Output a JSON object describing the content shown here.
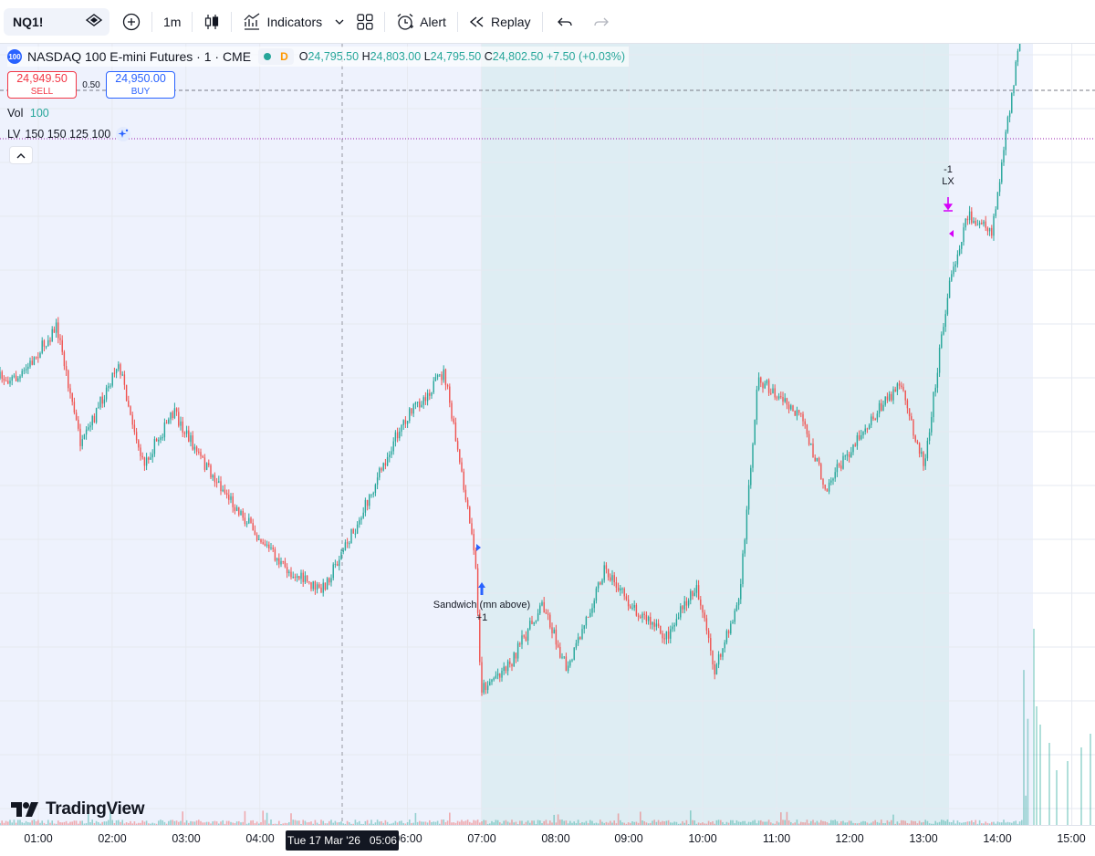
{
  "toolbar": {
    "symbol": "NQ1!",
    "interval": "1m",
    "indicators_label": "Indicators",
    "alert_label": "Alert",
    "replay_label": "Replay"
  },
  "legend": {
    "badge": "100",
    "title": "NASDAQ 100 E-mini Futures · 1 · CME",
    "session_badge": "D",
    "open_label": "O",
    "open": "24,795.50",
    "high_label": "H",
    "high": "24,803.00",
    "low_label": "L",
    "low": "24,795.50",
    "close_label": "C",
    "close": "24,802.50",
    "change": "+7.50 (+0.03%)"
  },
  "trade": {
    "sell_price": "24,949.50",
    "sell_label": "SELL",
    "spread": "0.50",
    "buy_price": "24,950.00",
    "buy_label": "BUY"
  },
  "indicators": {
    "vol_label": "Vol",
    "vol_value": "100",
    "lv_label": "LV",
    "lv_values": "150 150 125 100"
  },
  "annotations": {
    "entry_label": "Sandwich (mn above)",
    "entry_qty": "+1",
    "exit_qty": "-1",
    "exit_label": "LX"
  },
  "time_axis": {
    "ticks": [
      "01:00",
      "02:00",
      "03:00",
      "04:00",
      "06:00",
      "07:00",
      "08:00",
      "09:00",
      "10:00",
      "11:00",
      "12:00",
      "13:00",
      "14:00",
      "15:00"
    ],
    "crosshair_date": "Tue 17 Mar '26",
    "crosshair_time": "05:06"
  },
  "brand": "TradingView",
  "colors": {
    "up": "#26a69a",
    "down": "#ef5350",
    "session_bg": "#eef2fd",
    "highlight_bg": "#deedf3",
    "accent": "#2962ff",
    "exit_marker": "#d500f9"
  },
  "chart_data": {
    "type": "candlestick",
    "symbol": "NQ1!",
    "x_range": [
      "00:45",
      "15:20"
    ],
    "path": [
      {
        "t": "00:45",
        "price": 24700
      },
      {
        "t": "01:15",
        "price": 24745
      },
      {
        "t": "01:35",
        "price": 24640
      },
      {
        "t": "02:05",
        "price": 24715
      },
      {
        "t": "02:25",
        "price": 24625
      },
      {
        "t": "02:50",
        "price": 24670
      },
      {
        "t": "03:15",
        "price": 24625
      },
      {
        "t": "03:50",
        "price": 24575
      },
      {
        "t": "04:20",
        "price": 24535
      },
      {
        "t": "04:50",
        "price": 24515
      },
      {
        "t": "05:20",
        "price": 24575
      },
      {
        "t": "05:55",
        "price": 24660
      },
      {
        "t": "06:30",
        "price": 24705
      },
      {
        "t": "06:55",
        "price": 24545
      },
      {
        "t": "07:00",
        "price": 24430
      },
      {
        "t": "07:25",
        "price": 24455
      },
      {
        "t": "07:50",
        "price": 24505
      },
      {
        "t": "08:10",
        "price": 24445
      },
      {
        "t": "08:40",
        "price": 24535
      },
      {
        "t": "09:00",
        "price": 24505
      },
      {
        "t": "09:30",
        "price": 24475
      },
      {
        "t": "09:55",
        "price": 24520
      },
      {
        "t": "10:10",
        "price": 24445
      },
      {
        "t": "10:30",
        "price": 24510
      },
      {
        "t": "10:45",
        "price": 24700
      },
      {
        "t": "11:20",
        "price": 24665
      },
      {
        "t": "11:40",
        "price": 24605
      },
      {
        "t": "12:10",
        "price": 24655
      },
      {
        "t": "12:40",
        "price": 24695
      },
      {
        "t": "13:00",
        "price": 24625
      },
      {
        "t": "13:20",
        "price": 24780
      },
      {
        "t": "13:35",
        "price": 24842
      },
      {
        "t": "13:55",
        "price": 24825
      },
      {
        "t": "14:15",
        "price": 24975
      },
      {
        "t": "14:25",
        "price": 25035
      }
    ],
    "price_lines": [
      24950,
      24908
    ],
    "highlight_range": [
      "07:00",
      "13:20"
    ],
    "entry_marker": {
      "t": "07:00",
      "label": "Sandwich (mn above)",
      "qty": "+1"
    },
    "exit_marker": {
      "t": "13:20",
      "label": "LX",
      "qty": "-1"
    }
  }
}
